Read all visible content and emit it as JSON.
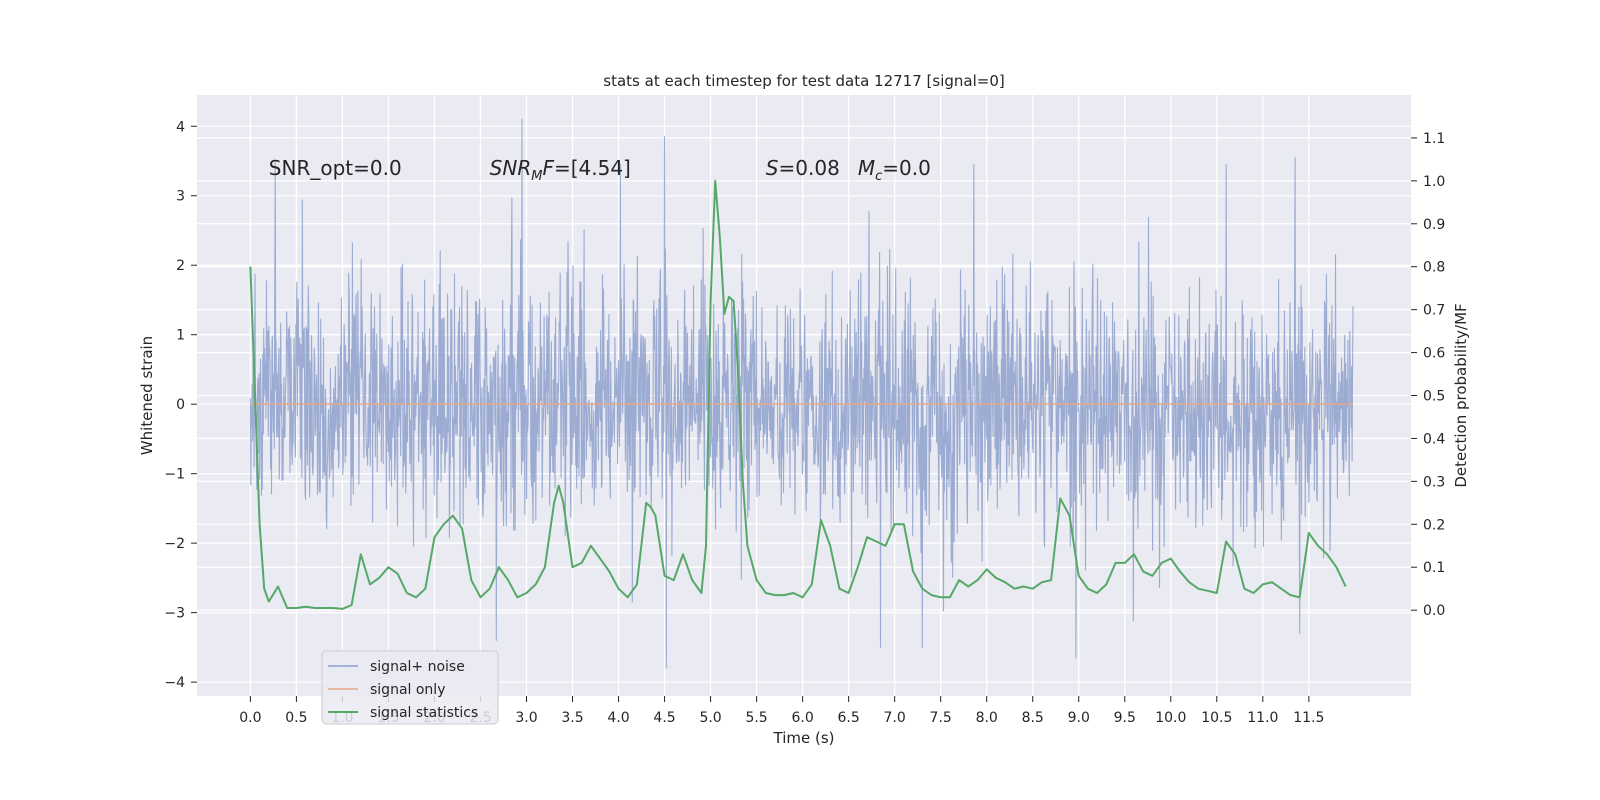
{
  "chart_data": {
    "type": "line",
    "title": "stats at each timestep for test data 12717 [signal=0]",
    "xlabel": "Time (s)",
    "ylabel_left": "Whitened strain",
    "ylabel_right": "Detection probability/MF",
    "xlim": [
      -0.58,
      12.61
    ],
    "ylim_left": [
      -4.2,
      4.45
    ],
    "ylim_right": [
      -0.2,
      1.2
    ],
    "x_ticks": [
      0.0,
      0.5,
      1.0,
      1.5,
      2.0,
      2.5,
      3.0,
      3.5,
      4.0,
      4.5,
      5.0,
      5.5,
      6.0,
      6.5,
      7.0,
      7.5,
      8.0,
      8.5,
      9.0,
      9.5,
      10.0,
      10.5,
      11.0,
      11.5
    ],
    "x_tick_labels": [
      "0.0",
      "0.5",
      "1.0",
      "1.5",
      "2.0",
      "2.5",
      "3.0",
      "3.5",
      "4.0",
      "4.5",
      "5.0",
      "5.5",
      "6.0",
      "6.5",
      "7.0",
      "7.5",
      "8.0",
      "8.5",
      "9.0",
      "9.5",
      "10.0",
      "10.5",
      "11.0",
      "11.5"
    ],
    "y_left_ticks": [
      4,
      3,
      2,
      1,
      0,
      -1,
      -2,
      -3,
      -4
    ],
    "y_left_tick_labels": [
      "4",
      "3",
      "2",
      "1",
      "0",
      "−1",
      "−2",
      "−3",
      "−4"
    ],
    "y_right_ticks": [
      1.1,
      1.0,
      0.9,
      0.8,
      0.7,
      0.6,
      0.5,
      0.4,
      0.3,
      0.2,
      0.1,
      0.0
    ],
    "y_right_tick_labels": [
      "1.1",
      "1.0",
      "0.9",
      "0.8",
      "0.7",
      "0.6",
      "0.5",
      "0.4",
      "0.3",
      "0.2",
      "0.1",
      "0.0"
    ],
    "grid": true,
    "legend_position": "lower-left",
    "annotations": [
      {
        "text": "SNR_opt=0.0",
        "x": 0.2,
        "y": 3.3
      },
      {
        "text": "SNR",
        "sub": "M",
        "rest": "F=[4.54]",
        "x": 2.6,
        "y": 3.3,
        "italic": true
      },
      {
        "text": "S",
        "rest": "=0.08",
        "x": 5.6,
        "y": 3.3,
        "italic": true
      },
      {
        "text": "M",
        "sub": "c",
        "rest": "=0.0",
        "x": 6.6,
        "y": 3.3,
        "italic": true
      }
    ],
    "series": [
      {
        "name": "signal+ noise",
        "axis": "left",
        "color": "#8da0cb",
        "kind": "noise",
        "x_range": [
          0.0,
          11.98
        ],
        "samples": 2400,
        "stats": {
          "mean": 0.0,
          "std": 0.85,
          "max": 4.1,
          "min": -3.8
        },
        "peaks": [
          {
            "x": 2.95,
            "y": 4.1
          },
          {
            "x": 4.5,
            "y": 3.85
          },
          {
            "x": 11.35,
            "y": 3.55
          },
          {
            "x": 0.27,
            "y": 3.5
          },
          {
            "x": 4.02,
            "y": 3.45
          },
          {
            "x": 7.86,
            "y": 3.45
          },
          {
            "x": 4.52,
            "y": -3.8
          },
          {
            "x": 8.97,
            "y": -3.65
          },
          {
            "x": 2.67,
            "y": -3.4
          },
          {
            "x": 10.6,
            "y": 3.45
          },
          {
            "x": 7.3,
            "y": -3.5
          },
          {
            "x": 11.4,
            "y": -3.3
          }
        ]
      },
      {
        "name": "signal only",
        "axis": "left",
        "color": "#e5a88a",
        "x": [
          0.0,
          11.98
        ],
        "y": [
          0.0,
          0.0
        ]
      },
      {
        "name": "signal statistics",
        "axis": "right",
        "color": "#55a868",
        "x": [
          0.0,
          0.1,
          0.15,
          0.2,
          0.3,
          0.4,
          0.5,
          0.6,
          0.7,
          0.8,
          0.9,
          1.0,
          1.1,
          1.2,
          1.3,
          1.4,
          1.5,
          1.6,
          1.7,
          1.8,
          1.9,
          2.0,
          2.1,
          2.2,
          2.3,
          2.4,
          2.5,
          2.6,
          2.7,
          2.8,
          2.9,
          3.0,
          3.1,
          3.2,
          3.3,
          3.35,
          3.4,
          3.5,
          3.6,
          3.7,
          3.8,
          3.9,
          4.0,
          4.1,
          4.2,
          4.3,
          4.35,
          4.4,
          4.5,
          4.6,
          4.7,
          4.8,
          4.9,
          4.95,
          5.0,
          5.05,
          5.1,
          5.15,
          5.2,
          5.25,
          5.3,
          5.35,
          5.4,
          5.5,
          5.6,
          5.7,
          5.8,
          5.9,
          6.0,
          6.1,
          6.2,
          6.3,
          6.4,
          6.5,
          6.6,
          6.7,
          6.8,
          6.9,
          7.0,
          7.1,
          7.2,
          7.3,
          7.4,
          7.5,
          7.6,
          7.7,
          7.8,
          7.9,
          8.0,
          8.1,
          8.2,
          8.3,
          8.4,
          8.5,
          8.6,
          8.7,
          8.8,
          8.9,
          9.0,
          9.1,
          9.2,
          9.3,
          9.4,
          9.5,
          9.6,
          9.7,
          9.8,
          9.9,
          10.0,
          10.1,
          10.2,
          10.3,
          10.4,
          10.5,
          10.6,
          10.7,
          10.8,
          10.9,
          11.0,
          11.1,
          11.2,
          11.3,
          11.4,
          11.5,
          11.6,
          11.7,
          11.8,
          11.9
        ],
        "y": [
          0.8,
          0.2,
          0.05,
          0.02,
          0.055,
          0.005,
          0.005,
          0.008,
          0.005,
          0.005,
          0.005,
          0.003,
          0.012,
          0.13,
          0.06,
          0.075,
          0.1,
          0.085,
          0.04,
          0.03,
          0.05,
          0.17,
          0.2,
          0.22,
          0.19,
          0.07,
          0.03,
          0.05,
          0.1,
          0.07,
          0.03,
          0.04,
          0.06,
          0.1,
          0.25,
          0.29,
          0.25,
          0.1,
          0.11,
          0.15,
          0.12,
          0.09,
          0.05,
          0.03,
          0.06,
          0.25,
          0.24,
          0.22,
          0.08,
          0.07,
          0.13,
          0.07,
          0.04,
          0.15,
          0.72,
          1.0,
          0.87,
          0.69,
          0.73,
          0.72,
          0.55,
          0.3,
          0.15,
          0.07,
          0.04,
          0.035,
          0.035,
          0.04,
          0.03,
          0.06,
          0.21,
          0.15,
          0.05,
          0.04,
          0.1,
          0.17,
          0.16,
          0.15,
          0.2,
          0.2,
          0.09,
          0.05,
          0.035,
          0.03,
          0.03,
          0.07,
          0.055,
          0.07,
          0.095,
          0.075,
          0.065,
          0.05,
          0.055,
          0.05,
          0.065,
          0.07,
          0.26,
          0.22,
          0.08,
          0.05,
          0.04,
          0.06,
          0.11,
          0.11,
          0.13,
          0.09,
          0.08,
          0.11,
          0.12,
          0.09,
          0.065,
          0.05,
          0.045,
          0.04,
          0.16,
          0.13,
          0.05,
          0.04,
          0.06,
          0.065,
          0.05,
          0.035,
          0.03,
          0.18,
          0.15,
          0.13,
          0.1,
          0.055
        ]
      }
    ]
  }
}
